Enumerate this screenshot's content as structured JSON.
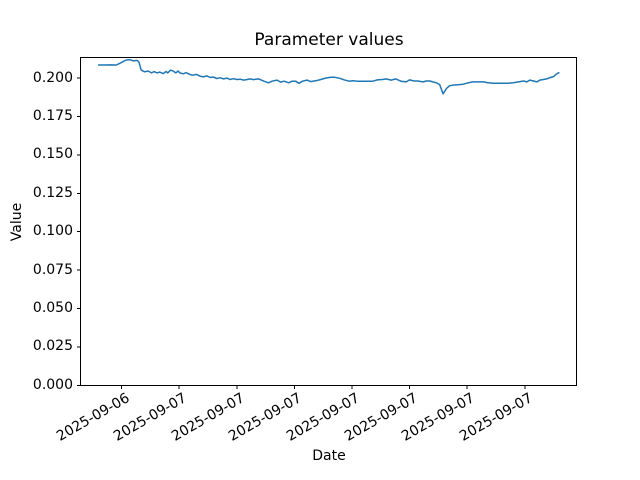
{
  "chart_data": {
    "type": "line",
    "title": "Parameter values",
    "xlabel": "Date",
    "ylabel": "Value",
    "grid": false,
    "legend": "none",
    "x_tick_labels": [
      "2025-09-06",
      "2025-09-07",
      "2025-09-07",
      "2025-09-07",
      "2025-09-07",
      "2025-09-07",
      "2025-09-07",
      "2025-09-07"
    ],
    "y_tick_labels": [
      "0.000",
      "0.025",
      "0.050",
      "0.075",
      "0.100",
      "0.125",
      "0.150",
      "0.175",
      "0.200"
    ],
    "y_tick_values": [
      0,
      0.025,
      0.05,
      0.075,
      0.1,
      0.125,
      0.15,
      0.175,
      0.2
    ],
    "xlim": [
      -0.71,
      7.9
    ],
    "ylim": [
      0,
      0.2134
    ],
    "series": [
      {
        "name": "parameter-value-line",
        "color": "#1f77b4",
        "x_unit": "tick-index",
        "points": [
          [
            -0.4,
            0.2085
          ],
          [
            -0.3,
            0.2085
          ],
          [
            -0.2,
            0.2086
          ],
          [
            -0.09,
            0.2085
          ],
          [
            -0.01,
            0.21
          ],
          [
            0.08,
            0.2118
          ],
          [
            0.14,
            0.212
          ],
          [
            0.21,
            0.2112
          ],
          [
            0.27,
            0.2115
          ],
          [
            0.3,
            0.2105
          ],
          [
            0.34,
            0.2052
          ],
          [
            0.4,
            0.2041
          ],
          [
            0.46,
            0.2046
          ],
          [
            0.52,
            0.2034
          ],
          [
            0.56,
            0.2042
          ],
          [
            0.62,
            0.2034
          ],
          [
            0.66,
            0.2039
          ],
          [
            0.72,
            0.2029
          ],
          [
            0.77,
            0.2043
          ],
          [
            0.8,
            0.2034
          ],
          [
            0.85,
            0.2052
          ],
          [
            0.9,
            0.2045
          ],
          [
            0.94,
            0.2034
          ],
          [
            0.98,
            0.2046
          ],
          [
            1.01,
            0.2034
          ],
          [
            1.07,
            0.2028
          ],
          [
            1.12,
            0.2035
          ],
          [
            1.19,
            0.2023
          ],
          [
            1.24,
            0.2019
          ],
          [
            1.3,
            0.2024
          ],
          [
            1.36,
            0.2013
          ],
          [
            1.42,
            0.2008
          ],
          [
            1.48,
            0.2014
          ],
          [
            1.54,
            0.2004
          ],
          [
            1.59,
            0.2007
          ],
          [
            1.65,
            0.1997
          ],
          [
            1.71,
            0.2002
          ],
          [
            1.77,
            0.1995
          ],
          [
            1.83,
            0.2
          ],
          [
            1.88,
            0.1991
          ],
          [
            1.94,
            0.1996
          ],
          [
            2.0,
            0.1991
          ],
          [
            2.06,
            0.1993
          ],
          [
            2.12,
            0.1987
          ],
          [
            2.18,
            0.1991
          ],
          [
            2.23,
            0.1995
          ],
          [
            2.29,
            0.199
          ],
          [
            2.38,
            0.1995
          ],
          [
            2.47,
            0.198
          ],
          [
            2.55,
            0.1969
          ],
          [
            2.61,
            0.198
          ],
          [
            2.7,
            0.1987
          ],
          [
            2.76,
            0.1974
          ],
          [
            2.82,
            0.198
          ],
          [
            2.9,
            0.1969
          ],
          [
            2.96,
            0.198
          ],
          [
            3.02,
            0.198
          ],
          [
            3.08,
            0.1966
          ],
          [
            3.14,
            0.198
          ],
          [
            3.22,
            0.1987
          ],
          [
            3.28,
            0.1977
          ],
          [
            3.37,
            0.1982
          ],
          [
            3.46,
            0.1991
          ],
          [
            3.54,
            0.2
          ],
          [
            3.63,
            0.2006
          ],
          [
            3.69,
            0.2006
          ],
          [
            3.78,
            0.1999
          ],
          [
            3.86,
            0.1989
          ],
          [
            3.95,
            0.198
          ],
          [
            4.01,
            0.1982
          ],
          [
            4.1,
            0.1979
          ],
          [
            4.18,
            0.1979
          ],
          [
            4.27,
            0.1979
          ],
          [
            4.36,
            0.198
          ],
          [
            4.44,
            0.1988
          ],
          [
            4.53,
            0.1991
          ],
          [
            4.59,
            0.1995
          ],
          [
            4.68,
            0.1987
          ],
          [
            4.76,
            0.1995
          ],
          [
            4.85,
            0.198
          ],
          [
            4.94,
            0.1975
          ],
          [
            5.0,
            0.1988
          ],
          [
            5.08,
            0.1981
          ],
          [
            5.14,
            0.1981
          ],
          [
            5.23,
            0.1975
          ],
          [
            5.29,
            0.1981
          ],
          [
            5.35,
            0.1981
          ],
          [
            5.4,
            0.1975
          ],
          [
            5.46,
            0.197
          ],
          [
            5.52,
            0.1958
          ],
          [
            5.58,
            0.1898
          ],
          [
            5.64,
            0.1932
          ],
          [
            5.69,
            0.195
          ],
          [
            5.75,
            0.1954
          ],
          [
            5.84,
            0.1956
          ],
          [
            5.93,
            0.196
          ],
          [
            6.02,
            0.197
          ],
          [
            6.1,
            0.1975
          ],
          [
            6.19,
            0.1975
          ],
          [
            6.28,
            0.1975
          ],
          [
            6.36,
            0.197
          ],
          [
            6.45,
            0.1966
          ],
          [
            6.54,
            0.1966
          ],
          [
            6.63,
            0.1966
          ],
          [
            6.71,
            0.1966
          ],
          [
            6.8,
            0.197
          ],
          [
            6.89,
            0.1975
          ],
          [
            6.98,
            0.1981
          ],
          [
            7.03,
            0.1975
          ],
          [
            7.09,
            0.1987
          ],
          [
            7.15,
            0.1981
          ],
          [
            7.21,
            0.1975
          ],
          [
            7.26,
            0.1987
          ],
          [
            7.32,
            0.1991
          ],
          [
            7.38,
            0.1995
          ],
          [
            7.44,
            0.2003
          ],
          [
            7.5,
            0.201
          ],
          [
            7.54,
            0.2024
          ],
          [
            7.59,
            0.2035
          ]
        ]
      }
    ],
    "colors": {
      "line": "#1f77b4",
      "axes": "#000000",
      "background": "#ffffff"
    }
  }
}
